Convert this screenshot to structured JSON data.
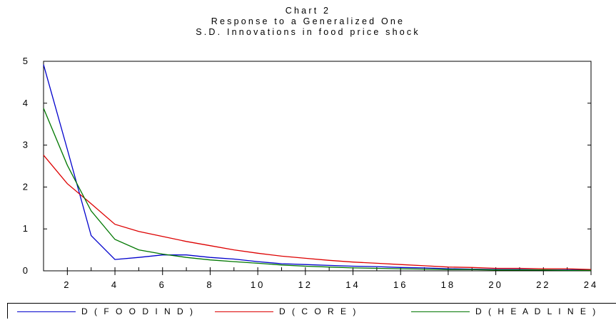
{
  "chart_data": {
    "type": "line",
    "title": [
      "Chart 2",
      "Response to a Generalized One",
      "S.D. Innovations in food price shock"
    ],
    "xlabel": "",
    "ylabel": "",
    "x": [
      1,
      2,
      3,
      4,
      5,
      6,
      7,
      8,
      9,
      10,
      11,
      12,
      13,
      14,
      15,
      16,
      17,
      18,
      19,
      20,
      21,
      22,
      23,
      24
    ],
    "xticks": [
      2,
      4,
      6,
      8,
      10,
      12,
      14,
      16,
      18,
      20,
      22,
      24
    ],
    "xtick_labels": [
      "2",
      "4",
      "6",
      "8",
      "10",
      "12",
      "14",
      "16",
      "18",
      "20",
      "22",
      "24"
    ],
    "yticks": [
      0,
      1,
      2,
      3,
      4,
      5
    ],
    "ytick_labels": [
      "0",
      "1",
      "2",
      "3",
      "4",
      "5"
    ],
    "xlim": [
      1,
      24
    ],
    "ylim": [
      0,
      5
    ],
    "grid": false,
    "legend_position": "bottom",
    "series": [
      {
        "name": "D(FOODIND)",
        "color": "#0000cc",
        "values": [
          4.92,
          2.9,
          0.84,
          0.27,
          0.32,
          0.38,
          0.38,
          0.32,
          0.28,
          0.22,
          0.17,
          0.15,
          0.13,
          0.11,
          0.1,
          0.08,
          0.07,
          0.05,
          0.04,
          0.03,
          0.03,
          0.02,
          0.02,
          0.02
        ]
      },
      {
        "name": "D(CORE)",
        "color": "#dd0000",
        "values": [
          2.76,
          2.08,
          1.6,
          1.11,
          0.94,
          0.82,
          0.7,
          0.6,
          0.5,
          0.42,
          0.35,
          0.3,
          0.25,
          0.21,
          0.18,
          0.15,
          0.12,
          0.09,
          0.08,
          0.06,
          0.06,
          0.05,
          0.05,
          0.03
        ]
      },
      {
        "name": "D(HEADLINE)",
        "color": "#007700",
        "values": [
          3.88,
          2.52,
          1.43,
          0.75,
          0.5,
          0.4,
          0.32,
          0.26,
          0.22,
          0.18,
          0.14,
          0.11,
          0.09,
          0.07,
          0.06,
          0.05,
          0.04,
          0.03,
          0.03,
          0.02,
          0.02,
          0.02,
          0.01,
          0.01
        ]
      }
    ]
  }
}
